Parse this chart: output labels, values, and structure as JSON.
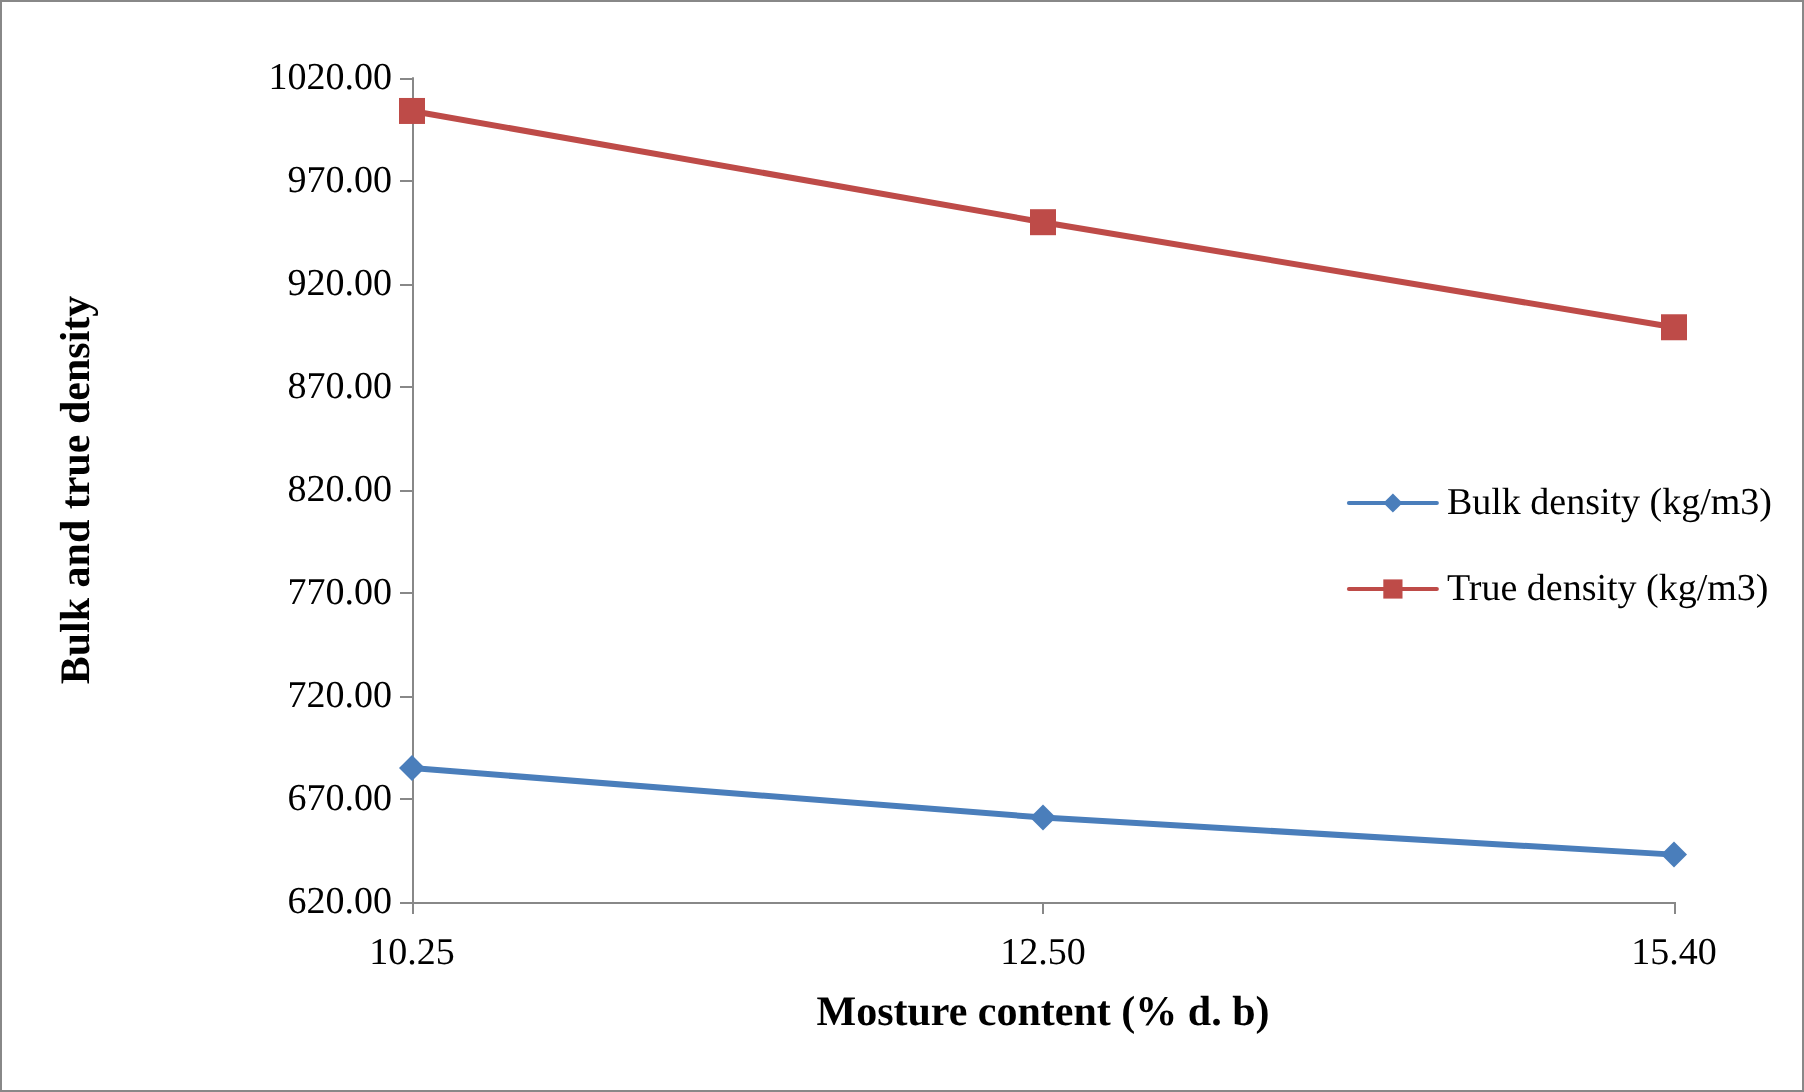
{
  "chart_data": {
    "type": "line",
    "xlabel": "Mosture content (% d. b)",
    "ylabel": "Bulk and true density",
    "categories": [
      "10.25",
      "12.50",
      "15.40"
    ],
    "series": [
      {
        "name": "Bulk density (kg/m3)",
        "color": "#4a7ebb",
        "marker": "diamond",
        "values": [
          685,
          661,
          643
        ]
      },
      {
        "name": "True density (kg/m3)",
        "color": "#be4b48",
        "marker": "square",
        "values": [
          1004,
          950,
          899
        ]
      }
    ],
    "ylim": [
      620,
      1020
    ],
    "yticks": [
      {
        "value": 620,
        "label": "620.00"
      },
      {
        "value": 670,
        "label": "670.00"
      },
      {
        "value": 720,
        "label": "720.00"
      },
      {
        "value": 770,
        "label": "770.00"
      },
      {
        "value": 820,
        "label": "820.00"
      },
      {
        "value": 870,
        "label": "870.00"
      },
      {
        "value": 920,
        "label": "920.00"
      },
      {
        "value": 970,
        "label": "970.00"
      },
      {
        "value": 1020,
        "label": "1020.00"
      }
    ],
    "grid": false,
    "legend": "right",
    "line_style": "solid"
  }
}
